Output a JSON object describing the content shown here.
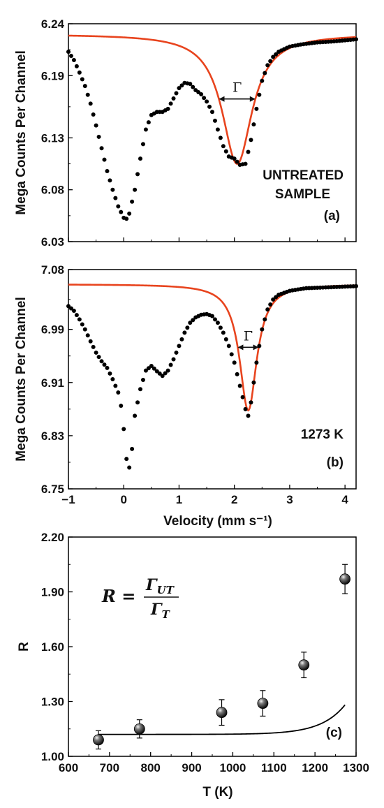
{
  "chart_data": [
    {
      "panel": "a",
      "type": "scatter",
      "ylabel": "Mega Counts Per Channel",
      "xlim": [
        -1,
        4.2
      ],
      "ylim": [
        6.03,
        6.24
      ],
      "yticks": [
        "6.24",
        "6.19",
        "6.13",
        "6.08",
        "6.03"
      ],
      "ytick_values": [
        6.24,
        6.19,
        6.13,
        6.08,
        6.03
      ],
      "annotations": [
        "UNTREATED",
        "SAMPLE",
        "(a)"
      ],
      "gamma_label": "Γ",
      "grid": false,
      "series": [
        {
          "kind": "data-points",
          "color": "#000000",
          "x": [
            -1.0,
            -0.9,
            -0.8,
            -0.7,
            -0.6,
            -0.5,
            -0.4,
            -0.3,
            -0.2,
            -0.1,
            0.0,
            0.05,
            0.1,
            0.2,
            0.3,
            0.4,
            0.5,
            0.6,
            0.7,
            0.8,
            0.9,
            1.0,
            1.1,
            1.2,
            1.3,
            1.4,
            1.5,
            1.6,
            1.7,
            1.8,
            1.9,
            2.0,
            2.1,
            2.2,
            2.3,
            2.4,
            2.5,
            2.6,
            2.7,
            2.8,
            3.0,
            3.2,
            3.5,
            3.8,
            4.2
          ],
          "y": [
            6.213,
            6.205,
            6.193,
            6.18,
            6.163,
            6.142,
            6.12,
            6.098,
            6.08,
            6.064,
            6.053,
            6.052,
            6.057,
            6.08,
            6.11,
            6.138,
            6.152,
            6.155,
            6.155,
            6.158,
            6.168,
            6.178,
            6.183,
            6.182,
            6.176,
            6.172,
            6.165,
            6.155,
            6.138,
            6.122,
            6.112,
            6.11,
            6.104,
            6.105,
            6.128,
            6.158,
            6.185,
            6.2,
            6.208,
            6.213,
            6.218,
            6.22,
            6.222,
            6.223,
            6.225
          ]
        },
        {
          "kind": "fit-curve",
          "color": "#e8441e",
          "model": "lorentzian",
          "baseline": 6.23,
          "center": 2.05,
          "depth": 0.125,
          "hwhm": 0.33
        }
      ]
    },
    {
      "panel": "b",
      "type": "scatter",
      "ylabel": "Mega Counts Per Channel",
      "xlabel": "Velocity (mm s⁻¹)",
      "xlim": [
        -1,
        4.2
      ],
      "ylim": [
        6.75,
        7.08
      ],
      "yticks": [
        "7.08",
        "6.99",
        "6.91",
        "6.83",
        "6.75"
      ],
      "ytick_values": [
        7.08,
        6.99,
        6.91,
        6.83,
        6.75
      ],
      "xticks": [
        "−1",
        "0",
        "1",
        "2",
        "3",
        "4"
      ],
      "xtick_values": [
        -1,
        0,
        1,
        2,
        3,
        4
      ],
      "annotations": [
        "1273 K",
        "(b)"
      ],
      "gamma_label": "Γ",
      "grid": false,
      "series": [
        {
          "kind": "data-points",
          "color": "#000000",
          "x": [
            -1.0,
            -0.9,
            -0.8,
            -0.7,
            -0.6,
            -0.5,
            -0.4,
            -0.3,
            -0.2,
            -0.1,
            -0.05,
            0.0,
            0.05,
            0.1,
            0.15,
            0.2,
            0.3,
            0.4,
            0.5,
            0.6,
            0.7,
            0.8,
            0.9,
            1.0,
            1.1,
            1.2,
            1.3,
            1.4,
            1.5,
            1.6,
            1.7,
            1.8,
            1.9,
            2.0,
            2.1,
            2.15,
            2.2,
            2.25,
            2.3,
            2.4,
            2.5,
            2.6,
            2.7,
            2.8,
            3.0,
            3.3,
            3.6,
            3.9,
            4.2
          ],
          "y": [
            7.025,
            7.018,
            7.005,
            6.99,
            6.972,
            6.955,
            6.942,
            6.932,
            6.915,
            6.895,
            6.875,
            6.84,
            6.795,
            6.782,
            6.81,
            6.86,
            6.9,
            6.928,
            6.935,
            6.927,
            6.92,
            6.928,
            6.945,
            6.965,
            6.985,
            7.0,
            7.008,
            7.012,
            7.013,
            7.01,
            7.0,
            6.985,
            6.965,
            6.94,
            6.905,
            6.888,
            6.87,
            6.86,
            6.88,
            6.94,
            6.99,
            7.02,
            7.035,
            7.042,
            7.048,
            7.052,
            7.053,
            7.054,
            7.055
          ]
        },
        {
          "kind": "fit-curve",
          "color": "#e8441e",
          "model": "lorentzian",
          "baseline": 7.058,
          "center": 2.25,
          "depth": 0.19,
          "hwhm": 0.19
        }
      ]
    },
    {
      "panel": "c",
      "type": "scatter",
      "xlabel": "T (K)",
      "ylabel": "R",
      "xlim": [
        600,
        1300
      ],
      "ylim": [
        1.0,
        2.2
      ],
      "xticks": [
        "600",
        "700",
        "800",
        "900",
        "1000",
        "1100",
        "1200",
        "1300"
      ],
      "xtick_values": [
        600,
        700,
        800,
        900,
        1000,
        1100,
        1200,
        1300
      ],
      "yticks": [
        "2.20",
        "1.90",
        "1.60",
        "1.30",
        "1.00"
      ],
      "ytick_values": [
        2.2,
        1.9,
        1.6,
        1.3,
        1.0
      ],
      "annotations": [
        "(c)"
      ],
      "formula": {
        "lhs": "R =",
        "numerator": "Γ",
        "numerator_sub": "UT",
        "denominator": "Γ",
        "denominator_sub": "T"
      },
      "grid": false,
      "series": [
        {
          "kind": "data-points-with-errors",
          "color": "#000000",
          "x": [
            673,
            773,
            973,
            1073,
            1173,
            1273
          ],
          "y": [
            1.09,
            1.15,
            1.24,
            1.29,
            1.5,
            1.97
          ],
          "yerr": [
            0.05,
            0.05,
            0.07,
            0.07,
            0.07,
            0.08
          ]
        },
        {
          "kind": "fit-curve",
          "color": "#000000",
          "model": "exponential",
          "a": 1.12,
          "b": 0.0136,
          "t0": 1130,
          "k": 0.0173,
          "x_range": [
            673,
            1273
          ]
        }
      ]
    }
  ]
}
